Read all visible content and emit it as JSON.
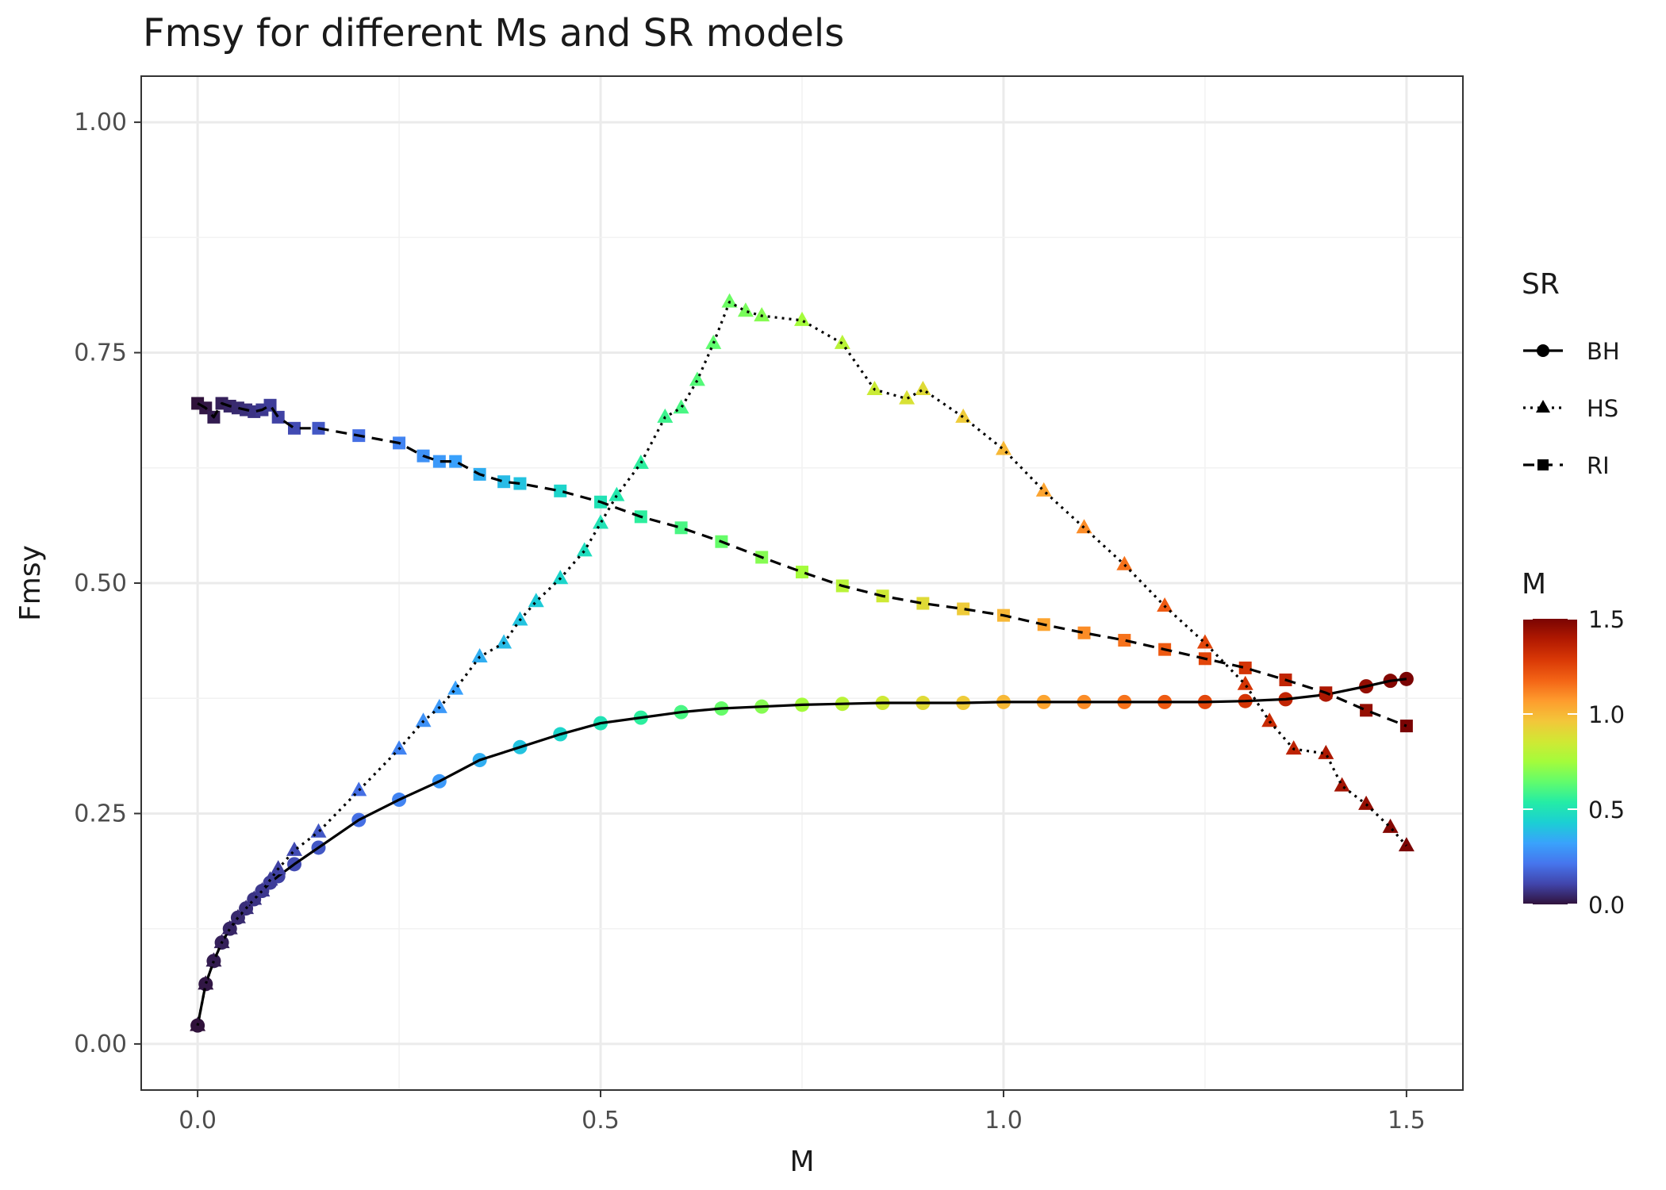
{
  "chart_data": {
    "type": "line",
    "title": "Fmsy for different Ms and SR models",
    "xlabel": "M",
    "ylabel": "Fmsy",
    "xlim": [
      -0.07,
      1.57
    ],
    "ylim": [
      -0.05,
      1.05
    ],
    "x_ticks": [
      0.0,
      0.5,
      1.0,
      1.5
    ],
    "x_tick_labels": [
      "0.0",
      "0.5",
      "1.0",
      "1.5"
    ],
    "y_ticks": [
      0.0,
      0.25,
      0.5,
      0.75,
      1.0
    ],
    "y_tick_labels": [
      "0.00",
      "0.25",
      "0.50",
      "0.75",
      "1.00"
    ],
    "grid": true,
    "legend_position": "right",
    "shape_legend": {
      "title": "SR",
      "entries": [
        {
          "label": "BH",
          "shape": "circle",
          "linetype": "solid"
        },
        {
          "label": "HS",
          "shape": "triangle",
          "linetype": "dotted"
        },
        {
          "label": "RI",
          "shape": "square",
          "linetype": "dashed"
        }
      ]
    },
    "color_legend": {
      "title": "M",
      "palette": "turbo",
      "range": [
        0,
        1.5
      ],
      "tick_labels": [
        "0.0",
        "0.5",
        "1.0",
        "1.5"
      ],
      "colors": [
        "#30123b",
        "#4145ab",
        "#4675ed",
        "#39a2fc",
        "#1bcfd4",
        "#24eca6",
        "#61fc6c",
        "#a4fc3b",
        "#d1e834",
        "#f3c63a",
        "#fe9b2d",
        "#f36315",
        "#d93806",
        "#b11901",
        "#7a0403"
      ]
    },
    "series": [
      {
        "name": "BH",
        "shape": "circle",
        "linetype": "solid",
        "x": [
          0.0,
          0.01,
          0.02,
          0.03,
          0.04,
          0.05,
          0.06,
          0.07,
          0.08,
          0.09,
          0.1,
          0.12,
          0.15,
          0.2,
          0.25,
          0.3,
          0.35,
          0.4,
          0.45,
          0.5,
          0.55,
          0.6,
          0.65,
          0.7,
          0.75,
          0.8,
          0.85,
          0.9,
          0.95,
          1.0,
          1.05,
          1.1,
          1.15,
          1.2,
          1.25,
          1.3,
          1.35,
          1.4,
          1.45,
          1.48,
          1.5
        ],
        "y": [
          0.02,
          0.065,
          0.09,
          0.11,
          0.125,
          0.137,
          0.147,
          0.157,
          0.166,
          0.175,
          0.182,
          0.195,
          0.213,
          0.243,
          0.265,
          0.285,
          0.308,
          0.322,
          0.336,
          0.348,
          0.354,
          0.36,
          0.364,
          0.366,
          0.368,
          0.369,
          0.37,
          0.37,
          0.37,
          0.371,
          0.371,
          0.371,
          0.371,
          0.371,
          0.371,
          0.372,
          0.374,
          0.379,
          0.388,
          0.394,
          0.396
        ]
      },
      {
        "name": "HS",
        "shape": "triangle",
        "linetype": "dotted",
        "x": [
          0.0,
          0.01,
          0.02,
          0.03,
          0.04,
          0.05,
          0.06,
          0.07,
          0.08,
          0.09,
          0.1,
          0.12,
          0.15,
          0.2,
          0.25,
          0.28,
          0.3,
          0.32,
          0.35,
          0.38,
          0.4,
          0.42,
          0.45,
          0.48,
          0.5,
          0.52,
          0.55,
          0.58,
          0.6,
          0.62,
          0.64,
          0.66,
          0.68,
          0.7,
          0.75,
          0.8,
          0.84,
          0.88,
          0.9,
          0.95,
          1.0,
          1.05,
          1.1,
          1.15,
          1.2,
          1.25,
          1.3,
          1.33,
          1.36,
          1.4,
          1.42,
          1.45,
          1.48,
          1.5
        ],
        "y": [
          0.02,
          0.065,
          0.09,
          0.11,
          0.125,
          0.137,
          0.147,
          0.157,
          0.166,
          0.178,
          0.19,
          0.21,
          0.23,
          0.275,
          0.32,
          0.35,
          0.365,
          0.385,
          0.42,
          0.435,
          0.46,
          0.48,
          0.505,
          0.535,
          0.565,
          0.595,
          0.63,
          0.68,
          0.69,
          0.72,
          0.76,
          0.805,
          0.795,
          0.79,
          0.785,
          0.76,
          0.71,
          0.7,
          0.71,
          0.68,
          0.645,
          0.6,
          0.56,
          0.52,
          0.475,
          0.435,
          0.39,
          0.35,
          0.32,
          0.315,
          0.28,
          0.26,
          0.235,
          0.215
        ]
      },
      {
        "name": "RI",
        "shape": "square",
        "linetype": "dashed",
        "x": [
          0.0,
          0.01,
          0.02,
          0.03,
          0.04,
          0.05,
          0.06,
          0.07,
          0.08,
          0.09,
          0.1,
          0.12,
          0.15,
          0.2,
          0.25,
          0.28,
          0.3,
          0.32,
          0.35,
          0.38,
          0.4,
          0.45,
          0.5,
          0.55,
          0.6,
          0.65,
          0.7,
          0.75,
          0.8,
          0.85,
          0.9,
          0.95,
          1.0,
          1.05,
          1.1,
          1.15,
          1.2,
          1.25,
          1.3,
          1.35,
          1.4,
          1.45,
          1.5
        ],
        "y": [
          0.695,
          0.69,
          0.68,
          0.695,
          0.692,
          0.69,
          0.688,
          0.686,
          0.688,
          0.693,
          0.68,
          0.668,
          0.668,
          0.66,
          0.652,
          0.638,
          0.632,
          0.632,
          0.618,
          0.61,
          0.608,
          0.6,
          0.588,
          0.572,
          0.56,
          0.545,
          0.528,
          0.512,
          0.497,
          0.486,
          0.478,
          0.472,
          0.465,
          0.455,
          0.446,
          0.438,
          0.428,
          0.418,
          0.408,
          0.395,
          0.381,
          0.362,
          0.345
        ]
      }
    ]
  }
}
